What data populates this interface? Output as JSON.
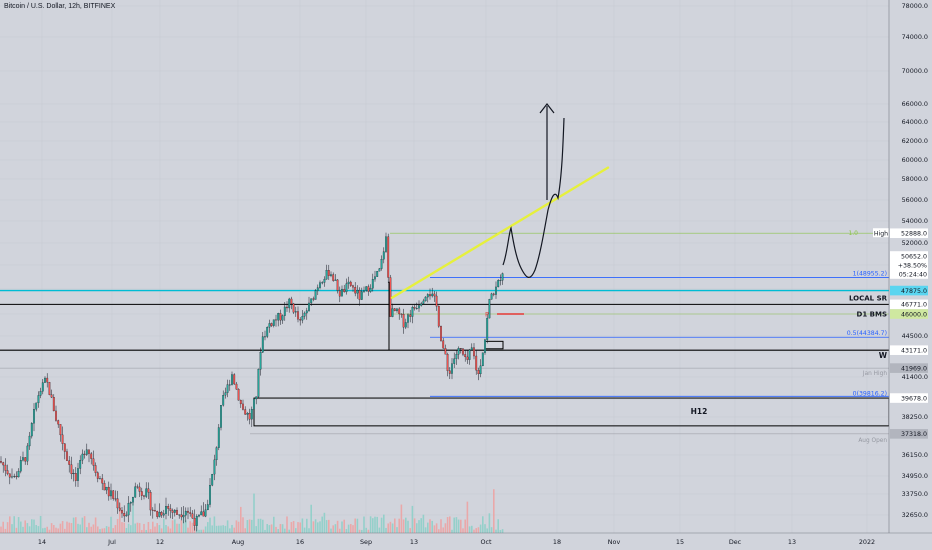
{
  "chart_title": "Bitcoin / U.S. Dollar, 12h, BITFINEX",
  "chart_data": {
    "type": "candlestick",
    "title": "Bitcoin / U.S. Dollar, 12h, BITFINEX",
    "y_ticks": [
      78000,
      74000,
      70000,
      66000,
      64000,
      62000,
      60000,
      58000,
      56000,
      54000,
      52000,
      50000,
      48000,
      46000,
      44500,
      43000,
      41400,
      39600,
      38250,
      36150,
      34950,
      33750,
      32650
    ],
    "x_ticks": [
      "14",
      "Jul",
      "12",
      "Aug",
      "16",
      "Sep",
      "13",
      "Oct",
      "18",
      "Nov",
      "15",
      "Dec",
      "13",
      "2022"
    ],
    "price_badges": [
      {
        "value": "52888.0",
        "color": "#ffffff",
        "text_color": "#131722"
      },
      {
        "value": "50652.0",
        "color": "#ffffff",
        "text_color": "#131722"
      },
      {
        "value": "+38.50%",
        "color": "#ffffff",
        "text_color": "#131722"
      },
      {
        "value": "05:24:40",
        "color": "#ffffff",
        "text_color": "#131722"
      },
      {
        "value": "47875.0",
        "color": "#5ad5f0",
        "text_color": "#131722"
      },
      {
        "value": "46771.0",
        "color": "#ffffff",
        "text_color": "#131722"
      },
      {
        "value": "46000.0",
        "color": "#cfe8a0",
        "text_color": "#131722"
      },
      {
        "value": "43171.0",
        "color": "#ffffff",
        "text_color": "#131722"
      },
      {
        "value": "41969.0",
        "color": "#b2b5be",
        "text_color": "#131722"
      },
      {
        "value": "39678.0",
        "color": "#ffffff",
        "text_color": "#131722"
      },
      {
        "value": "37318.0",
        "color": "#b2b5be",
        "text_color": "#131722"
      }
    ],
    "annotations": {
      "high": "High",
      "one_level": "1(48955.2)",
      "half_level": "0.5(44384.7)",
      "zero_level": "0(39816.2)",
      "local_sr": "LOCAL SR",
      "d1_bms": "D1 BMS",
      "w": "W",
      "h12": "H12",
      "jan_high": "Jan High",
      "aug_open": "Aug Open",
      "p_marker": "P"
    },
    "horizontal_levels": [
      {
        "name": "high",
        "price": 52888,
        "color": "#8bc34a"
      },
      {
        "name": "fib-1",
        "price": 48955.2,
        "color": "#2962ff"
      },
      {
        "name": "cyan-level",
        "price": 47875,
        "color": "#00bcd4"
      },
      {
        "name": "local-sr",
        "price": 46771,
        "color": "#000000"
      },
      {
        "name": "d1-bms",
        "price": 46000,
        "color": "#8bc34a"
      },
      {
        "name": "fib-0.5",
        "price": 44384.7,
        "color": "#2962ff"
      },
      {
        "name": "weekly",
        "price": 43171,
        "color": "#000000"
      },
      {
        "name": "jan-high",
        "price": 41969,
        "color": "#9598a1"
      },
      {
        "name": "fib-0",
        "price": 39816.2,
        "color": "#2962ff"
      },
      {
        "name": "aug-open",
        "price": 37318,
        "color": "#9598a1"
      }
    ],
    "h12_zone": [
      37760,
      39678
    ],
    "colors": {
      "up": "#26a69a",
      "down": "#ef5350",
      "wick": "#131722",
      "trendline": "#e6f03c"
    }
  }
}
